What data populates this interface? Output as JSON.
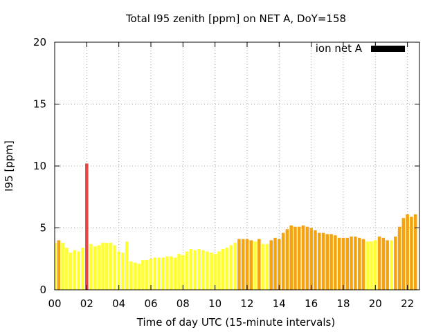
{
  "chart_data": {
    "type": "bar",
    "title": "Total I95 zenith [ppm] on NET A, DoY=158",
    "xlabel": "Time of day UTC (15-minute intervals)",
    "ylabel": "I95 [ppm]",
    "xlim": [
      0,
      22.75
    ],
    "ylim": [
      0,
      20
    ],
    "x_ticks": [
      "00",
      "02",
      "04",
      "06",
      "08",
      "10",
      "12",
      "14",
      "16",
      "18",
      "20",
      "22"
    ],
    "y_ticks": [
      "0",
      "5",
      "10",
      "15",
      "20"
    ],
    "grid": true,
    "legend": {
      "position": "top-right",
      "label": "ion net A",
      "color": "#000000"
    },
    "colors": {
      "low": "#ffff33",
      "medium": "#f5a30f",
      "high": "#e84545"
    },
    "bar_interval_hours": 0.25,
    "series": [
      {
        "values": [
          3.8,
          4.0,
          3.8,
          3.4,
          3.0,
          3.2,
          3.1,
          3.4,
          10.2,
          3.7,
          3.5,
          3.6,
          3.8,
          3.8,
          3.8,
          3.6,
          3.1,
          3.0,
          3.9,
          2.3,
          2.2,
          2.1,
          2.4,
          2.4,
          2.5,
          2.6,
          2.6,
          2.6,
          2.7,
          2.7,
          2.6,
          2.9,
          2.8,
          3.1,
          3.3,
          3.2,
          3.3,
          3.2,
          3.1,
          3.0,
          2.9,
          3.1,
          3.3,
          3.4,
          3.6,
          3.8,
          4.1,
          4.1,
          4.1,
          4.0,
          3.9,
          4.1,
          3.7,
          3.7,
          4.0,
          4.2,
          4.1,
          4.6,
          4.9,
          5.2,
          5.1,
          5.1,
          5.2,
          5.1,
          5.0,
          4.8,
          4.6,
          4.6,
          4.5,
          4.5,
          4.4,
          4.2,
          4.2,
          4.2,
          4.3,
          4.3,
          4.2,
          4.1,
          3.9,
          3.9,
          4.0,
          4.3,
          4.2,
          4.0,
          4.0,
          4.3,
          5.1,
          5.8,
          6.1,
          5.9,
          6.1
        ],
        "levels": [
          "low",
          "medium",
          "low",
          "low",
          "low",
          "low",
          "low",
          "low",
          "high",
          "low",
          "low",
          "low",
          "low",
          "low",
          "low",
          "low",
          "low",
          "low",
          "low",
          "low",
          "low",
          "low",
          "low",
          "low",
          "low",
          "low",
          "low",
          "low",
          "low",
          "low",
          "low",
          "low",
          "low",
          "low",
          "low",
          "low",
          "low",
          "low",
          "low",
          "low",
          "low",
          "low",
          "low",
          "low",
          "low",
          "low",
          "medium",
          "medium",
          "medium",
          "medium",
          "low",
          "medium",
          "low",
          "low",
          "medium",
          "medium",
          "medium",
          "medium",
          "medium",
          "medium",
          "medium",
          "medium",
          "medium",
          "medium",
          "medium",
          "medium",
          "medium",
          "medium",
          "medium",
          "medium",
          "medium",
          "medium",
          "medium",
          "medium",
          "medium",
          "medium",
          "medium",
          "medium",
          "low",
          "low",
          "low",
          "medium",
          "medium",
          "medium",
          "low",
          "medium",
          "medium",
          "medium",
          "medium",
          "medium",
          "medium"
        ]
      }
    ]
  }
}
